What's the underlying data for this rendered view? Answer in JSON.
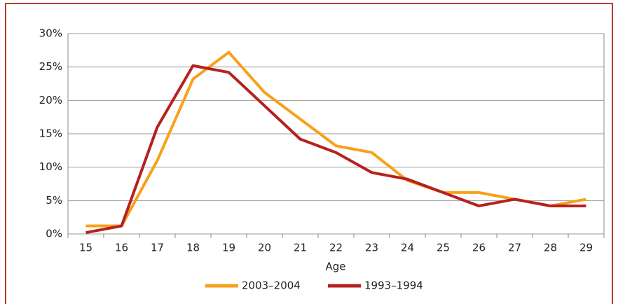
{
  "chart_data": {
    "type": "line",
    "x_label": "Age",
    "categories": [
      "15",
      "16",
      "17",
      "18",
      "19",
      "20",
      "21",
      "22",
      "23",
      "24",
      "25",
      "26",
      "27",
      "28",
      "29"
    ],
    "series": [
      {
        "name": "2003–2004",
        "color": "#f7a11a",
        "values": [
          1.2,
          1.2,
          11,
          23.2,
          27.2,
          21.2,
          17.2,
          13.2,
          12.2,
          8,
          6.2,
          6.2,
          5.2,
          4.2,
          5.2
        ]
      },
      {
        "name": "1993–1994",
        "color": "#b5211f",
        "values": [
          0.2,
          1.2,
          16,
          25.2,
          24.2,
          19.2,
          14.2,
          12.2,
          9.2,
          8.2,
          6.2,
          4.2,
          5.2,
          4.2,
          4.2
        ]
      }
    ],
    "ylim": [
      0,
      30
    ],
    "yticks": [
      {
        "value": 0,
        "label": "0%"
      },
      {
        "value": 5,
        "label": "5%"
      },
      {
        "value": 10,
        "label": "10%"
      },
      {
        "value": 15,
        "label": "15%"
      },
      {
        "value": 20,
        "label": "20%"
      },
      {
        "value": 25,
        "label": "25%"
      },
      {
        "value": 30,
        "label": "30%"
      }
    ],
    "grid": true,
    "legend": "bottom"
  }
}
